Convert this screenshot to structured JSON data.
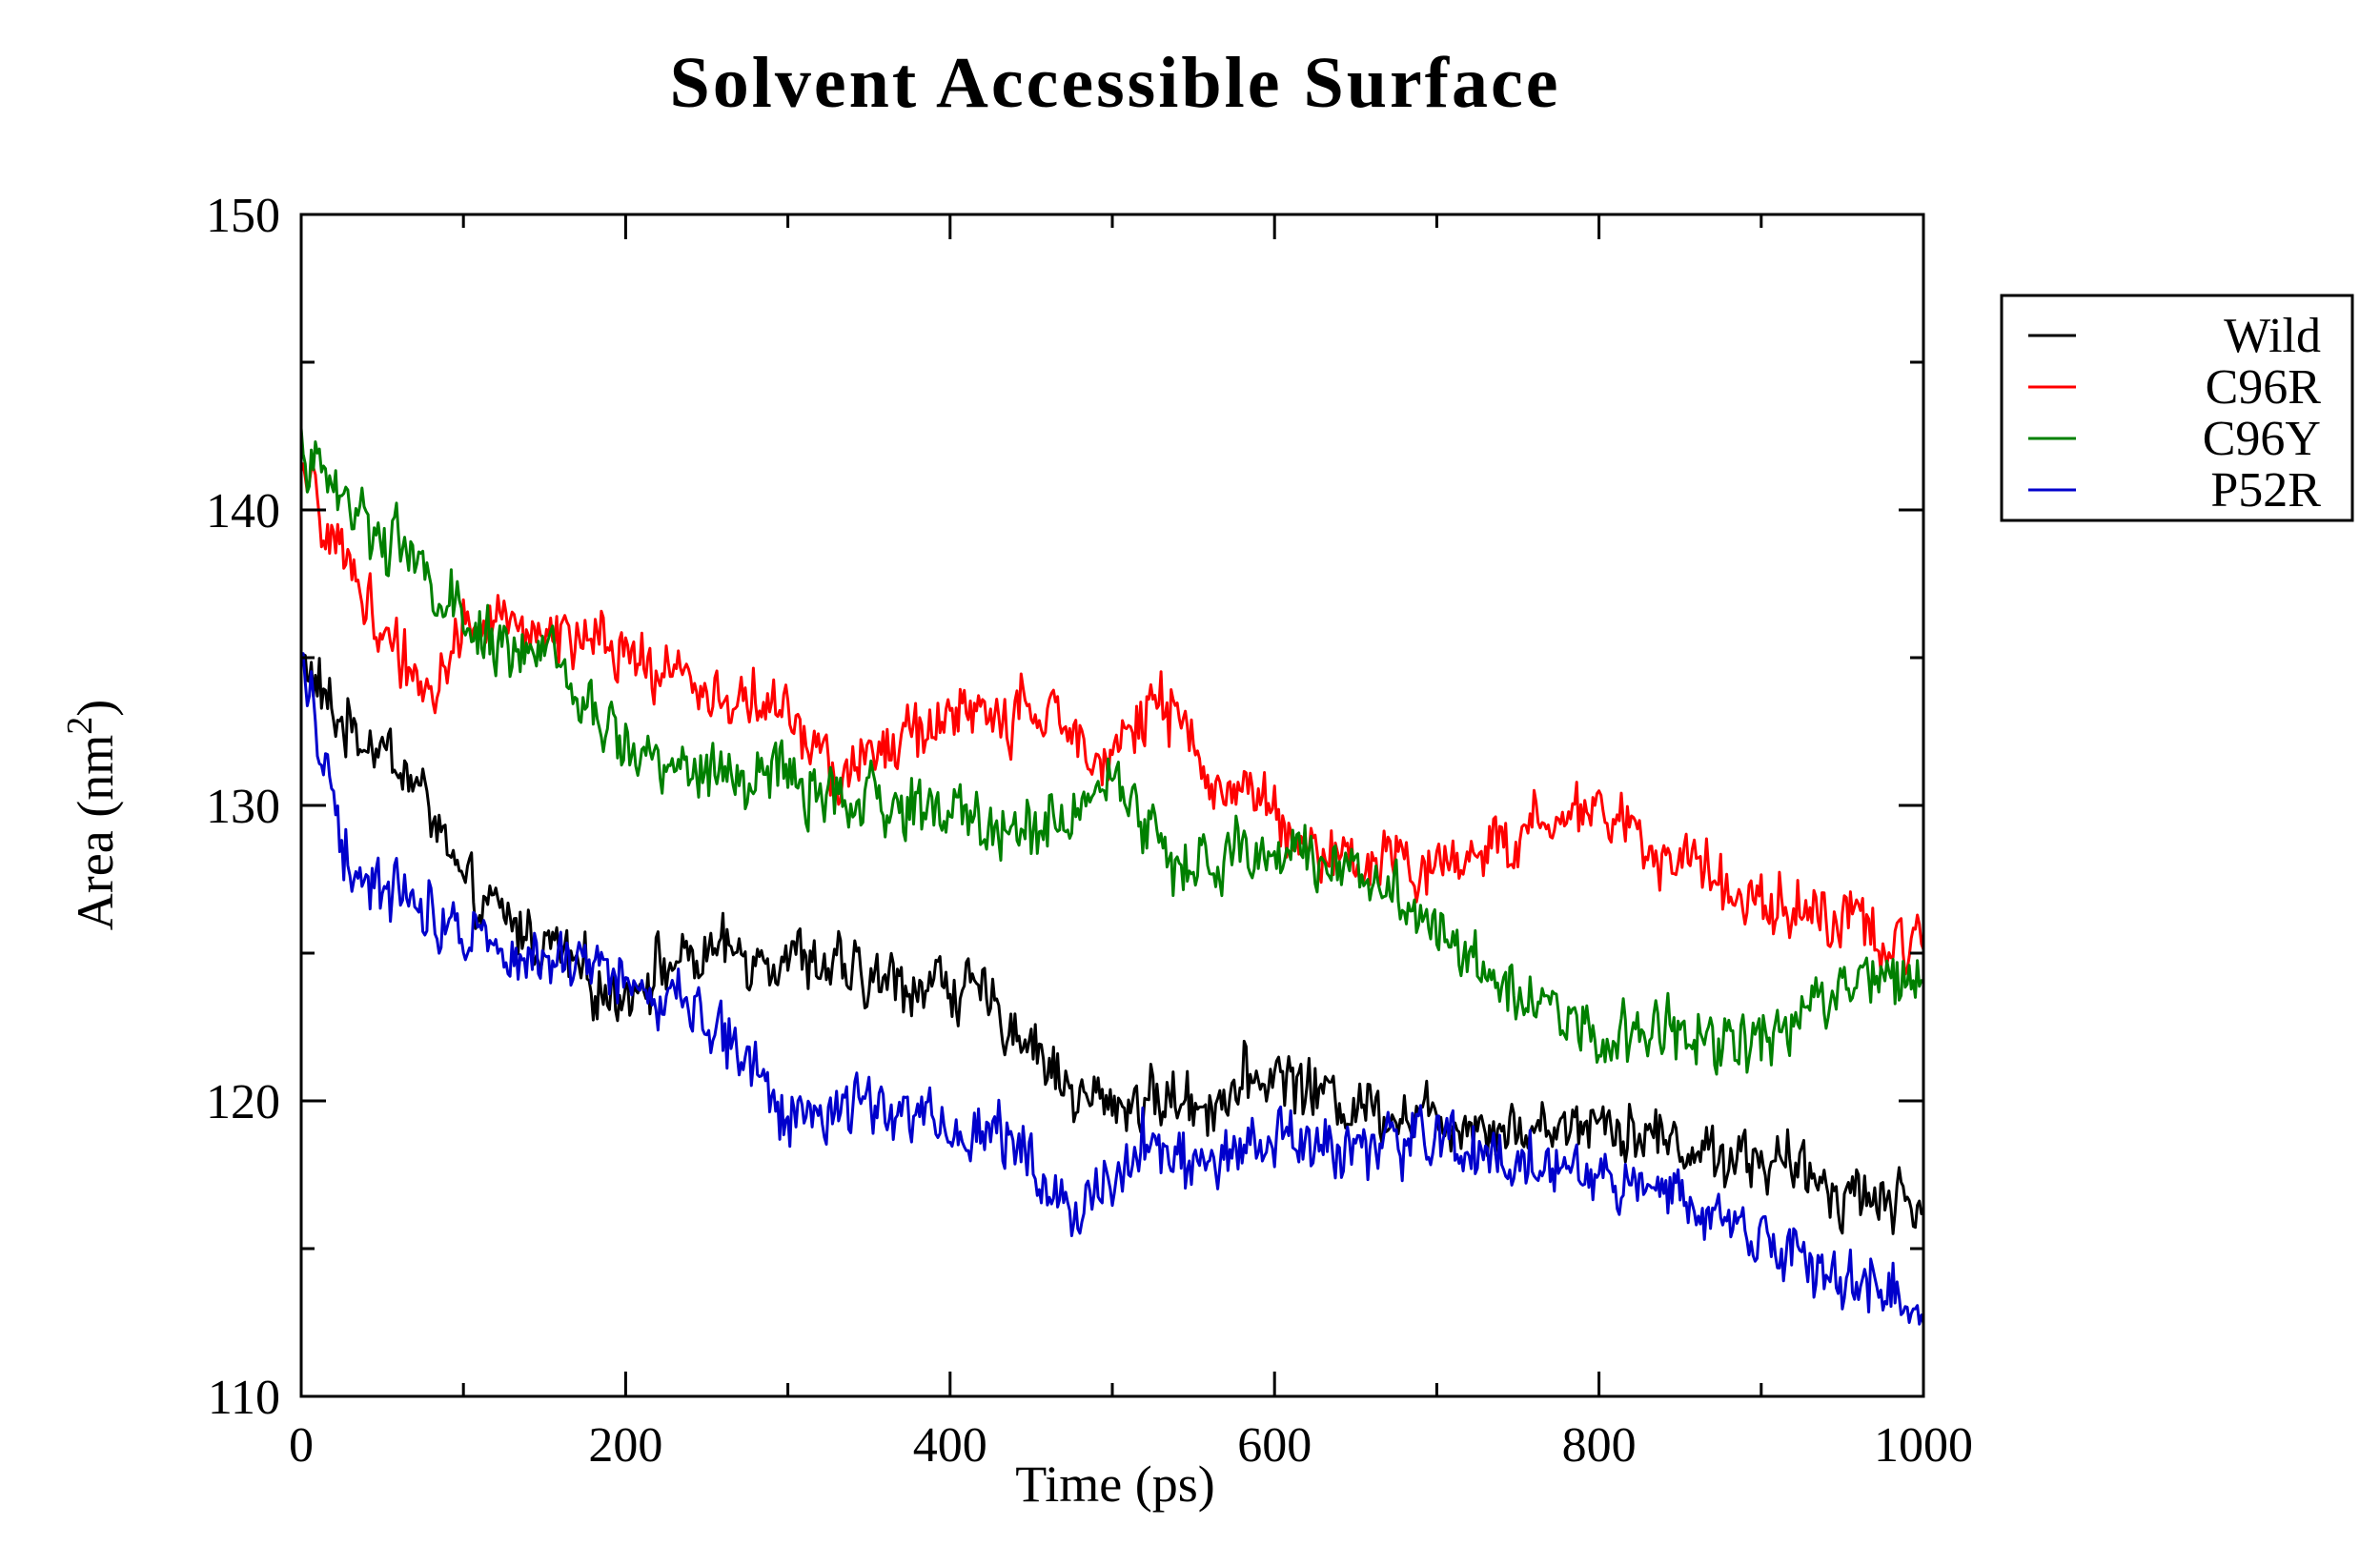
{
  "chart_data": {
    "type": "line",
    "title": "Solvent Accessible Surface",
    "xlabel": "Time (ps)",
    "ylabel": "Area (nm",
    "ylabel_sup": "2",
    "ylabel_close": ")",
    "xlim": [
      0,
      1000
    ],
    "ylim": [
      110,
      150
    ],
    "xticks": [
      0,
      200,
      400,
      600,
      800,
      1000
    ],
    "yticks": [
      110,
      120,
      130,
      140,
      150
    ],
    "xtick_labels": [
      "0",
      "200",
      "400",
      "600",
      "800",
      "1000"
    ],
    "ytick_labels": [
      "110",
      "120",
      "130",
      "140",
      "150"
    ],
    "grid": false,
    "legend_position": "right",
    "noise_amplitude": 1.3,
    "points_per_series": 800,
    "series": [
      {
        "name": "Wild",
        "color": "#000000",
        "anchors_x": [
          0,
          20,
          50,
          80,
          100,
          130,
          160,
          190,
          220,
          260,
          300,
          350,
          400,
          430,
          450,
          480,
          520,
          560,
          600,
          640,
          700,
          760,
          800,
          850,
          900,
          950,
          1000
        ],
        "anchors_y": [
          135,
          133,
          132,
          130,
          127,
          126,
          125,
          123.5,
          124.5,
          125,
          125,
          124,
          124,
          123,
          122,
          120,
          120,
          120,
          121,
          120,
          119.5,
          119,
          119.5,
          118.5,
          118,
          117,
          116.5
        ]
      },
      {
        "name": "C96R",
        "color": "#ff0000",
        "anchors_x": [
          0,
          30,
          60,
          80,
          100,
          150,
          200,
          250,
          300,
          330,
          360,
          400,
          450,
          500,
          530,
          560,
          600,
          630,
          660,
          700,
          750,
          800,
          850,
          900,
          950,
          1000
        ],
        "anchors_y": [
          141,
          138,
          135,
          134,
          136,
          136,
          135,
          134,
          133,
          131,
          132,
          133,
          133,
          132,
          133.5,
          131,
          130,
          128,
          128,
          128,
          129,
          130,
          128,
          127,
          126,
          125
        ]
      },
      {
        "name": "C96Y",
        "color": "#008000",
        "anchors_x": [
          0,
          30,
          60,
          100,
          150,
          180,
          200,
          250,
          300,
          330,
          380,
          420,
          450,
          500,
          540,
          560,
          600,
          650,
          680,
          720,
          760,
          800,
          850,
          900,
          950,
          1000
        ],
        "anchors_y": [
          142,
          140,
          139,
          136,
          135,
          133,
          132,
          131,
          131,
          130,
          130,
          129.5,
          129,
          131,
          128,
          128,
          128.5,
          128,
          127,
          125,
          123.5,
          122,
          122.5,
          122,
          124,
          124.5
        ]
      },
      {
        "name": "P52R",
        "color": "#0000cc",
        "anchors_x": [
          0,
          30,
          60,
          100,
          150,
          200,
          250,
          280,
          300,
          350,
          400,
          440,
          460,
          480,
          520,
          560,
          600,
          650,
          700,
          750,
          800,
          850,
          900,
          950,
          1000
        ],
        "anchors_y": [
          135,
          128,
          127,
          126,
          125,
          124,
          123,
          121,
          119.5,
          120,
          119,
          119,
          117,
          116.5,
          118.5,
          118,
          118.5,
          118.5,
          118.5,
          118,
          117.5,
          116.5,
          115.5,
          114,
          113
        ]
      }
    ]
  }
}
